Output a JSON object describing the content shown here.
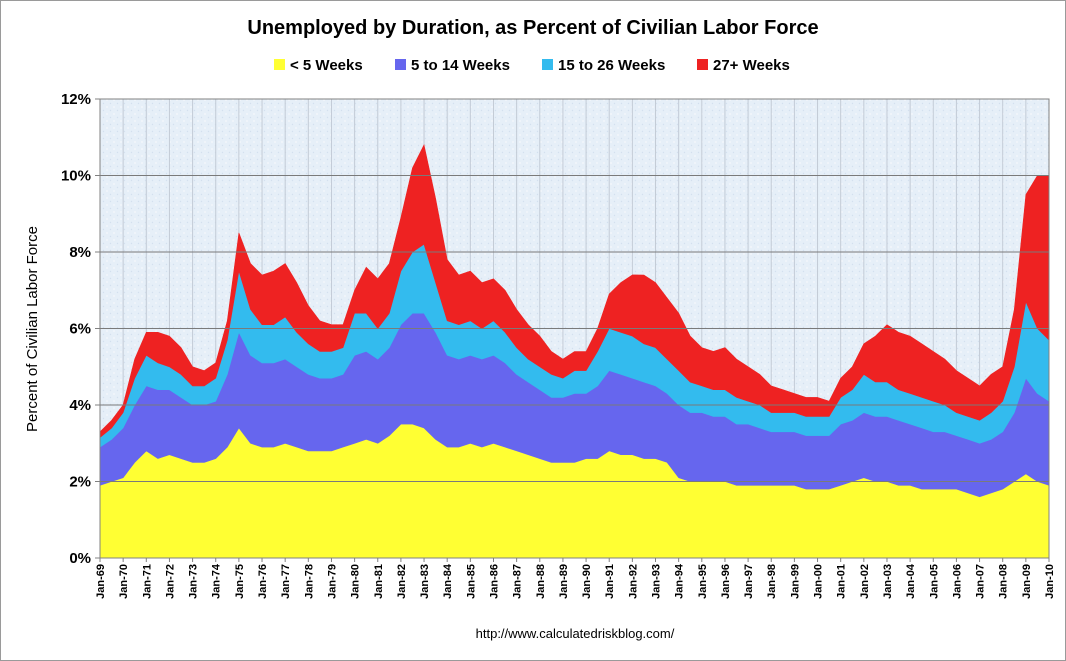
{
  "chart_data": {
    "type": "area",
    "stacked": true,
    "title": "Unemployed by Duration, as Percent of Civilian Labor Force",
    "ylabel": "Percent of Civilian Labor Force",
    "ylim": [
      0,
      12
    ],
    "yticks": [
      "0%",
      "2%",
      "4%",
      "6%",
      "8%",
      "10%",
      "12%"
    ],
    "xlim": [
      1969.0,
      2010.0
    ],
    "x_tick_labels": [
      "Jan-69",
      "Jan-70",
      "Jan-71",
      "Jan-72",
      "Jan-73",
      "Jan-74",
      "Jan-75",
      "Jan-76",
      "Jan-77",
      "Jan-78",
      "Jan-79",
      "Jan-80",
      "Jan-81",
      "Jan-82",
      "Jan-83",
      "Jan-84",
      "Jan-85",
      "Jan-86",
      "Jan-87",
      "Jan-88",
      "Jan-89",
      "Jan-90",
      "Jan-91",
      "Jan-92",
      "Jan-93",
      "Jan-94",
      "Jan-95",
      "Jan-96",
      "Jan-97",
      "Jan-98",
      "Jan-99",
      "Jan-00",
      "Jan-01",
      "Jan-02",
      "Jan-03",
      "Jan-04",
      "Jan-05",
      "Jan-06",
      "Jan-07",
      "Jan-08",
      "Jan-09",
      "Jan-10"
    ],
    "x": [
      1969.0,
      1969.5,
      1970.0,
      1970.5,
      1971.0,
      1971.5,
      1972.0,
      1972.5,
      1973.0,
      1973.5,
      1974.0,
      1974.5,
      1975.0,
      1975.5,
      1976.0,
      1976.5,
      1977.0,
      1977.5,
      1978.0,
      1978.5,
      1979.0,
      1979.5,
      1980.0,
      1980.5,
      1981.0,
      1981.5,
      1982.0,
      1982.5,
      1983.0,
      1983.5,
      1984.0,
      1984.5,
      1985.0,
      1985.5,
      1986.0,
      1986.5,
      1987.0,
      1987.5,
      1988.0,
      1988.5,
      1989.0,
      1989.5,
      1990.0,
      1990.5,
      1991.0,
      1991.5,
      1992.0,
      1992.5,
      1993.0,
      1993.5,
      1994.0,
      1994.5,
      1995.0,
      1995.5,
      1996.0,
      1996.5,
      1997.0,
      1997.5,
      1998.0,
      1998.5,
      1999.0,
      1999.5,
      2000.0,
      2000.5,
      2001.0,
      2001.5,
      2002.0,
      2002.5,
      2003.0,
      2003.5,
      2004.0,
      2004.5,
      2005.0,
      2005.5,
      2006.0,
      2006.5,
      2007.0,
      2007.5,
      2008.0,
      2008.5,
      2009.0,
      2009.5,
      2010.0
    ],
    "series": [
      {
        "name": "< 5 Weeks",
        "color": "#ffff33",
        "values": [
          1.9,
          2.0,
          2.1,
          2.5,
          2.8,
          2.6,
          2.7,
          2.6,
          2.5,
          2.5,
          2.6,
          2.9,
          3.4,
          3.0,
          2.9,
          2.9,
          3.0,
          2.9,
          2.8,
          2.8,
          2.8,
          2.9,
          3.0,
          3.1,
          3.0,
          3.2,
          3.5,
          3.5,
          3.4,
          3.1,
          2.9,
          2.9,
          3.0,
          2.9,
          3.0,
          2.9,
          2.8,
          2.7,
          2.6,
          2.5,
          2.5,
          2.5,
          2.6,
          2.6,
          2.8,
          2.7,
          2.7,
          2.6,
          2.6,
          2.5,
          2.1,
          2.0,
          2.0,
          2.0,
          2.0,
          1.9,
          1.9,
          1.9,
          1.9,
          1.9,
          1.9,
          1.8,
          1.8,
          1.8,
          1.9,
          2.0,
          2.1,
          2.0,
          2.0,
          1.9,
          1.9,
          1.8,
          1.8,
          1.8,
          1.8,
          1.7,
          1.6,
          1.7,
          1.8,
          2.0,
          2.2,
          2.0,
          1.9
        ]
      },
      {
        "name": "5 to 14 Weeks",
        "color": "#6666ee",
        "values": [
          1.0,
          1.1,
          1.3,
          1.5,
          1.7,
          1.8,
          1.7,
          1.6,
          1.5,
          1.5,
          1.5,
          1.9,
          2.5,
          2.3,
          2.2,
          2.2,
          2.2,
          2.1,
          2.0,
          1.9,
          1.9,
          1.9,
          2.3,
          2.3,
          2.2,
          2.3,
          2.6,
          2.9,
          3.0,
          2.8,
          2.4,
          2.3,
          2.3,
          2.3,
          2.3,
          2.2,
          2.0,
          1.9,
          1.8,
          1.7,
          1.7,
          1.8,
          1.7,
          1.9,
          2.1,
          2.1,
          2.0,
          2.0,
          1.9,
          1.8,
          1.9,
          1.8,
          1.8,
          1.7,
          1.7,
          1.6,
          1.6,
          1.5,
          1.4,
          1.4,
          1.4,
          1.4,
          1.4,
          1.4,
          1.6,
          1.6,
          1.7,
          1.7,
          1.7,
          1.7,
          1.6,
          1.6,
          1.5,
          1.5,
          1.4,
          1.4,
          1.4,
          1.4,
          1.5,
          1.8,
          2.5,
          2.3,
          2.2
        ]
      },
      {
        "name": "15 to 26 Weeks",
        "color": "#33bbee",
        "values": [
          0.25,
          0.3,
          0.4,
          0.7,
          0.8,
          0.7,
          0.6,
          0.6,
          0.5,
          0.5,
          0.6,
          0.9,
          1.6,
          1.2,
          1.0,
          1.0,
          1.1,
          0.9,
          0.8,
          0.7,
          0.7,
          0.7,
          1.1,
          1.0,
          0.8,
          0.9,
          1.4,
          1.6,
          1.8,
          1.3,
          0.9,
          0.9,
          0.9,
          0.8,
          0.9,
          0.8,
          0.7,
          0.6,
          0.6,
          0.6,
          0.5,
          0.6,
          0.6,
          0.9,
          1.1,
          1.1,
          1.1,
          1.0,
          1.0,
          0.9,
          0.9,
          0.8,
          0.7,
          0.7,
          0.7,
          0.7,
          0.6,
          0.6,
          0.5,
          0.5,
          0.5,
          0.5,
          0.5,
          0.5,
          0.7,
          0.8,
          1.0,
          0.9,
          0.9,
          0.8,
          0.8,
          0.8,
          0.8,
          0.7,
          0.6,
          0.6,
          0.6,
          0.7,
          0.8,
          1.2,
          2.0,
          1.7,
          1.6
        ]
      },
      {
        "name": "27+ Weeks",
        "color": "#ee2222",
        "values": [
          0.15,
          0.2,
          0.2,
          0.5,
          0.6,
          0.8,
          0.8,
          0.7,
          0.5,
          0.4,
          0.4,
          0.5,
          1.0,
          1.2,
          1.3,
          1.4,
          1.4,
          1.3,
          1.0,
          0.8,
          0.7,
          0.6,
          0.6,
          1.2,
          1.3,
          1.3,
          1.4,
          2.2,
          2.6,
          2.2,
          1.6,
          1.3,
          1.3,
          1.2,
          1.1,
          1.1,
          1.0,
          0.9,
          0.8,
          0.6,
          0.5,
          0.5,
          0.5,
          0.6,
          0.9,
          1.3,
          1.6,
          1.8,
          1.7,
          1.6,
          1.5,
          1.2,
          1.0,
          1.0,
          1.1,
          1.0,
          0.9,
          0.8,
          0.7,
          0.6,
          0.5,
          0.5,
          0.5,
          0.4,
          0.5,
          0.6,
          0.8,
          1.2,
          1.5,
          1.5,
          1.5,
          1.4,
          1.3,
          1.2,
          1.1,
          1.0,
          0.9,
          1.0,
          0.9,
          1.5,
          2.8,
          4.0,
          4.3
        ]
      }
    ],
    "grid": true,
    "legend_position": "top"
  },
  "source_url": "http://www.calculatedriskblog.com/"
}
